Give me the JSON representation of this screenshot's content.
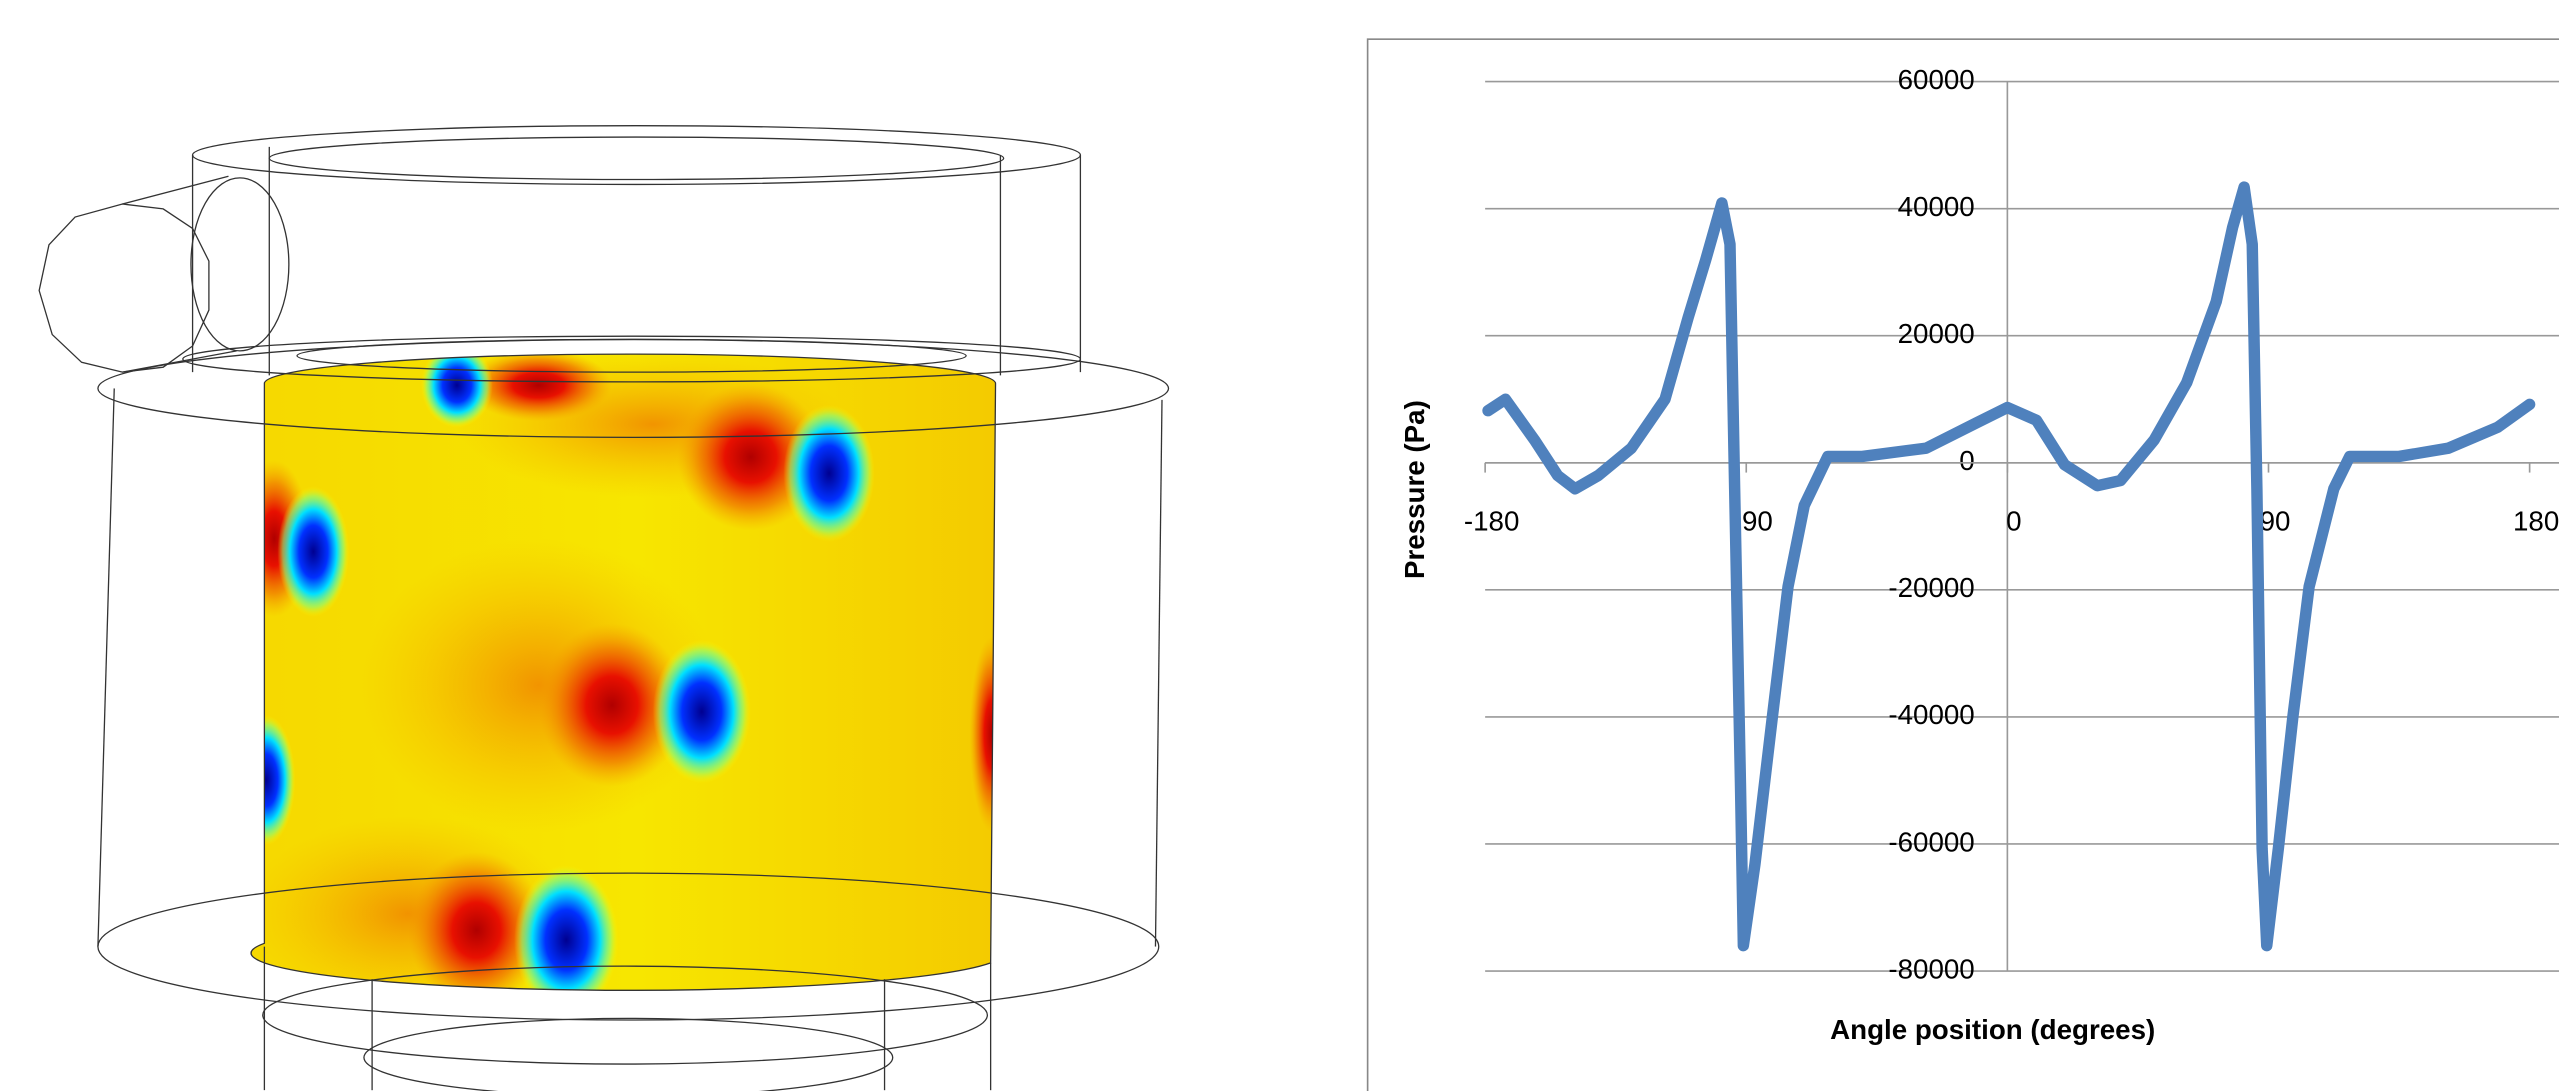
{
  "chart_data": {
    "type": "line",
    "xlabel": "Angle position (degrees)",
    "ylabel": "Pressure (Pa)",
    "xlim": [
      -180,
      180
    ],
    "xticks": [
      -180,
      -90,
      0,
      90,
      180
    ],
    "ylim": [
      -80000,
      60000
    ],
    "yticks": [
      -80000,
      -60000,
      -40000,
      -20000,
      0,
      20000,
      40000,
      60000
    ],
    "grid": true,
    "x": [
      -179,
      -173,
      -163,
      -155,
      -149,
      -141,
      -129.6,
      -118,
      -110,
      -104,
      -98.4,
      -95.6,
      -94,
      -92,
      -91,
      -87,
      -81,
      -75.6,
      -70,
      -61.9,
      -50,
      -28,
      -11,
      0,
      10,
      19.7,
      31,
      39,
      50.6,
      61.8,
      72,
      77.6,
      81.6,
      84.4,
      86,
      87.8,
      89.4,
      93.4,
      98.4,
      104,
      112.5,
      118,
      135,
      152,
      169,
      180
    ],
    "series": [
      {
        "color": "#4f81bd",
        "values": [
          8200,
          10000,
          3600,
          -2000,
          -4100,
          -2000,
          2300,
          10000,
          22900,
          31900,
          40900,
          34400,
          -4100,
          -50400,
          -76000,
          -63200,
          -40000,
          -19500,
          -6700,
          1000,
          1000,
          2300,
          6200,
          8700,
          6700,
          -300,
          -3600,
          -2800,
          3600,
          12600,
          25400,
          37000,
          43400,
          34400,
          -4100,
          -60700,
          -76000,
          -60700,
          -40000,
          -19500,
          -4100,
          1000,
          1000,
          2300,
          5600,
          9200
        ]
      }
    ]
  }
}
